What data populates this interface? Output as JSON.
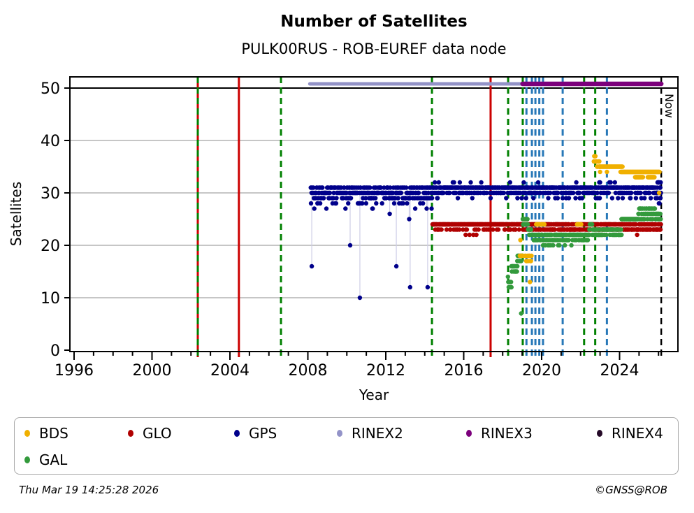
{
  "title": "Number of Satellites",
  "subtitle": "PULK00RUS - ROB-EUREF data node",
  "footer": {
    "timestamp": "Thu Mar 19 14:25:28 2026",
    "credit": "©GNSS@ROB"
  },
  "legend": {
    "items": [
      {
        "label": "BDS",
        "color": "#f0b000"
      },
      {
        "label": "GLO",
        "color": "#b00000"
      },
      {
        "label": "GPS",
        "color": "#00008b"
      },
      {
        "label": "RINEX2",
        "color": "#9393c8"
      },
      {
        "label": "RINEX3",
        "color": "#7c007c"
      },
      {
        "label": "RINEX4",
        "color": "#250a28"
      },
      {
        "label": "GAL",
        "color": "#339a3c"
      }
    ]
  },
  "chart_data": {
    "type": "scatter",
    "title": "Number of Satellites",
    "subtitle": "PULK00RUS - ROB-EUREF data node",
    "xlabel": "Year",
    "ylabel": "Satellites",
    "now_label": "Now",
    "xlim": [
      1995.78,
      2027.0
    ],
    "ylim": [
      0,
      52.1
    ],
    "xticks_major": [
      1996,
      2000,
      2004,
      2008,
      2012,
      2016,
      2020,
      2024
    ],
    "xticks_minor_step": 1,
    "xticks_minor_range": [
      1996,
      2026
    ],
    "yticks": [
      0,
      10,
      20,
      30,
      40,
      50
    ],
    "grid": {
      "y_gray": [
        10,
        20,
        30,
        40
      ],
      "y_black": [
        50
      ]
    },
    "colors": {
      "grid": "#b3b3b3",
      "axis": "#000000",
      "dropline": "#cdcde6",
      "event_red": "#cc0000",
      "event_green": "#008000",
      "event_blue": "#2878b8",
      "event_black": "#000000"
    },
    "event_lines": [
      {
        "year": 2002.35,
        "color": "#cc0000",
        "style": "solid"
      },
      {
        "year": 2002.35,
        "color": "#008000",
        "style": "dashed"
      },
      {
        "year": 2004.46,
        "color": "#cc0000",
        "style": "solid"
      },
      {
        "year": 2006.62,
        "color": "#008000",
        "style": "dashed"
      },
      {
        "year": 2014.37,
        "color": "#008000",
        "style": "dashed"
      },
      {
        "year": 2017.38,
        "color": "#cc0000",
        "style": "solid"
      },
      {
        "year": 2018.28,
        "color": "#008000",
        "style": "dashed"
      },
      {
        "year": 2019.03,
        "color": "#008000",
        "style": "dashed"
      },
      {
        "year": 2019.22,
        "color": "#2878b8",
        "style": "dashed"
      },
      {
        "year": 2019.5,
        "color": "#2878b8",
        "style": "dashed"
      },
      {
        "year": 2019.68,
        "color": "#2878b8",
        "style": "dashed"
      },
      {
        "year": 2019.88,
        "color": "#2878b8",
        "style": "dashed"
      },
      {
        "year": 2020.07,
        "color": "#2878b8",
        "style": "dashed"
      },
      {
        "year": 2021.08,
        "color": "#2878b8",
        "style": "dashed"
      },
      {
        "year": 2022.18,
        "color": "#008000",
        "style": "dashed"
      },
      {
        "year": 2022.75,
        "color": "#008000",
        "style": "dashed"
      },
      {
        "year": 2023.35,
        "color": "#2878b8",
        "style": "dashed"
      },
      {
        "year": 2026.14,
        "color": "#000000",
        "style": "dashed",
        "label": "Now"
      }
    ],
    "rinex_bars": [
      {
        "name": "RINEX2",
        "from": 2008.1,
        "to": 2019.2,
        "y": 51,
        "color": "#9393c8",
        "width": 5
      },
      {
        "name": "RINEX3",
        "from": 2019.02,
        "to": 2026.14,
        "y": 51,
        "color": "#7c007c",
        "width": 6.5
      }
    ],
    "series": [
      {
        "name": "GPS",
        "color": "#00008b",
        "segments": [
          {
            "from": 2008.15,
            "to": 2014.4,
            "step": 0.02,
            "levels": [
              [
                31,
                0.34
              ],
              [
                30,
                0.38
              ],
              [
                29,
                0.2
              ],
              [
                28,
                0.06
              ],
              [
                27,
                0.02
              ]
            ]
          },
          {
            "from": 2014.4,
            "to": 2025.9,
            "step": 0.02,
            "levels": [
              [
                31,
                0.62
              ],
              [
                30,
                0.3
              ],
              [
                29,
                0.06
              ],
              [
                32,
                0.02
              ]
            ]
          },
          {
            "from": 2025.9,
            "to": 2026.12,
            "step": 0.01,
            "levels": [
              [
                31,
                0.25
              ],
              [
                30,
                0.2
              ],
              [
                32,
                0.15
              ],
              [
                29,
                0.2
              ],
              [
                28,
                0.2
              ]
            ]
          }
        ],
        "outliers": [
          [
            2008.16,
            28
          ],
          [
            2008.2,
            16
          ],
          [
            2010.17,
            20
          ],
          [
            2010.67,
            10
          ],
          [
            2012.2,
            26
          ],
          [
            2012.54,
            16
          ],
          [
            2013.2,
            25
          ],
          [
            2013.25,
            12
          ],
          [
            2014.1,
            27
          ],
          [
            2014.15,
            12
          ]
        ],
        "dropline_below": 28,
        "dropline_top": 30
      },
      {
        "name": "GLO",
        "color": "#b00000",
        "segments": [
          {
            "from": 2014.4,
            "to": 2019.0,
            "step": 0.02,
            "levels": [
              [
                24,
                0.85
              ],
              [
                23,
                0.15
              ]
            ]
          },
          {
            "from": 2019.0,
            "to": 2026.12,
            "step": 0.02,
            "levels": [
              [
                24,
                0.58
              ],
              [
                23,
                0.42
              ]
            ]
          }
        ],
        "outliers": [
          [
            2016.1,
            22
          ],
          [
            2016.3,
            22
          ],
          [
            2016.5,
            22
          ],
          [
            2016.65,
            22
          ],
          [
            2024.9,
            22
          ]
        ]
      },
      {
        "name": "GAL",
        "color": "#339a3c",
        "segments": [
          {
            "from": 2018.27,
            "to": 2018.45,
            "step": 0.02,
            "levels": [
              [
                13,
                0.5
              ],
              [
                12,
                0.3
              ],
              [
                14,
                0.2
              ]
            ]
          },
          {
            "from": 2018.45,
            "to": 2018.75,
            "step": 0.02,
            "levels": [
              [
                16,
                0.5
              ],
              [
                15,
                0.5
              ]
            ]
          },
          {
            "from": 2018.75,
            "to": 2019.03,
            "step": 0.02,
            "levels": [
              [
                18,
                0.6
              ],
              [
                17,
                0.4
              ]
            ]
          },
          {
            "from": 2019.03,
            "to": 2019.3,
            "step": 0.02,
            "levels": [
              [
                25,
                0.6
              ],
              [
                24,
                0.4
              ]
            ]
          },
          {
            "from": 2019.3,
            "to": 2019.55,
            "step": 0.02,
            "levels": [
              [
                23,
                0.5
              ],
              [
                22,
                0.5
              ]
            ]
          },
          {
            "from": 2019.55,
            "to": 2022.45,
            "step": 0.02,
            "levels": [
              [
                22,
                0.62
              ],
              [
                21,
                0.34
              ],
              [
                20,
                0.04
              ]
            ]
          },
          {
            "from": 2022.45,
            "to": 2022.6,
            "step": 0.02,
            "levels": [
              [
                24,
                0.7
              ],
              [
                23,
                0.3
              ]
            ]
          },
          {
            "from": 2022.6,
            "to": 2024.1,
            "step": 0.02,
            "levels": [
              [
                23,
                0.45
              ],
              [
                22,
                0.55
              ]
            ]
          },
          {
            "from": 2024.1,
            "to": 2024.95,
            "step": 0.02,
            "levels": [
              [
                25,
                1.0
              ]
            ]
          },
          {
            "from": 2024.95,
            "to": 2025.85,
            "step": 0.02,
            "levels": [
              [
                27,
                0.45
              ],
              [
                26,
                0.35
              ],
              [
                25,
                0.2
              ]
            ]
          },
          {
            "from": 2025.85,
            "to": 2026.12,
            "step": 0.02,
            "levels": [
              [
                26,
                0.5
              ],
              [
                25,
                0.5
              ]
            ]
          }
        ],
        "outliers": [
          [
            2018.95,
            7
          ]
        ]
      },
      {
        "name": "BDS",
        "color": "#f0b000",
        "segments": [
          {
            "from": 2018.88,
            "to": 2019.05,
            "step": 0.03,
            "levels": [
              [
                21,
                0.5
              ],
              [
                18,
                0.5
              ]
            ]
          },
          {
            "from": 2019.15,
            "to": 2019.5,
            "step": 0.03,
            "levels": [
              [
                17,
                0.55
              ],
              [
                18,
                0.45
              ]
            ]
          },
          {
            "from": 2019.72,
            "to": 2020.15,
            "step": 0.03,
            "levels": [
              [
                24,
                1.0
              ]
            ]
          },
          {
            "from": 2021.82,
            "to": 2022.05,
            "step": 0.03,
            "levels": [
              [
                24,
                1.0
              ]
            ]
          },
          {
            "from": 2022.68,
            "to": 2022.8,
            "step": 0.02,
            "levels": [
              [
                37,
                0.5
              ],
              [
                36,
                0.5
              ]
            ]
          },
          {
            "from": 2022.8,
            "to": 2023.0,
            "step": 0.02,
            "levels": [
              [
                36,
                0.6
              ],
              [
                35,
                0.4
              ]
            ]
          },
          {
            "from": 2022.95,
            "to": 2024.15,
            "step": 0.02,
            "levels": [
              [
                35,
                1.0
              ]
            ]
          },
          {
            "from": 2024.05,
            "to": 2026.05,
            "step": 0.02,
            "levels": [
              [
                34,
                1.0
              ]
            ]
          },
          {
            "from": 2024.8,
            "to": 2025.2,
            "step": 0.02,
            "levels": [
              [
                33,
                1.0
              ]
            ]
          },
          {
            "from": 2025.45,
            "to": 2025.8,
            "step": 0.02,
            "levels": [
              [
                33,
                1.0
              ]
            ]
          }
        ],
        "outliers": [
          [
            2019.4,
            13
          ],
          [
            2023.0,
            34
          ],
          [
            2023.35,
            34
          ],
          [
            2026.03,
            30
          ]
        ]
      }
    ]
  }
}
